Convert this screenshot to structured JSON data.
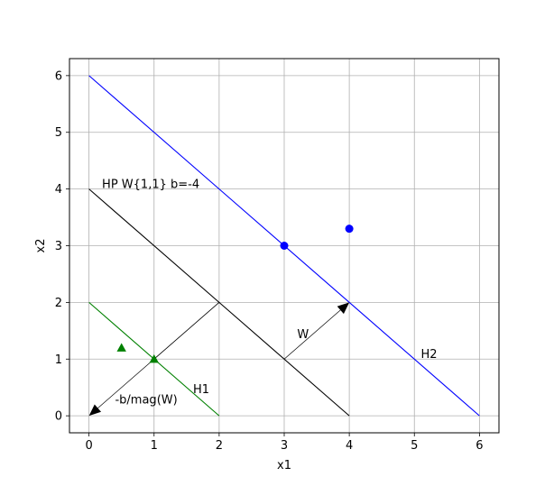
{
  "chart_data": {
    "type": "line",
    "title": "",
    "xlabel": "x1",
    "ylabel": "x2",
    "xlim": [
      -0.3,
      6.3
    ],
    "ylim": [
      -0.3,
      6.3
    ],
    "xticks": [
      0,
      1,
      2,
      3,
      4,
      5,
      6
    ],
    "yticks": [
      0,
      1,
      2,
      3,
      4,
      5,
      6
    ],
    "grid": true,
    "lines": [
      {
        "id": "hp",
        "color": "#000000",
        "x": [
          0,
          4
        ],
        "y": [
          4,
          0
        ]
      },
      {
        "id": "h2",
        "color": "#0000ff",
        "x": [
          0,
          6
        ],
        "y": [
          6,
          0
        ]
      },
      {
        "id": "h1",
        "color": "#008000",
        "x": [
          0,
          2
        ],
        "y": [
          2,
          0
        ]
      },
      {
        "id": "thin-diagonal",
        "color": "#000000",
        "x": [
          1,
          2
        ],
        "y": [
          1,
          2
        ]
      }
    ],
    "arrows": [
      {
        "id": "w",
        "x": [
          3,
          4
        ],
        "y": [
          1,
          2
        ]
      },
      {
        "id": "neg-b-mag-w",
        "x": [
          2,
          0
        ],
        "y": [
          2,
          0
        ]
      }
    ],
    "points": [
      {
        "series": "blue",
        "marker": "circle",
        "color": "#0000ff",
        "x": 3,
        "y": 3
      },
      {
        "series": "blue",
        "marker": "circle",
        "color": "#0000ff",
        "x": 4,
        "y": 3.3
      },
      {
        "series": "green",
        "marker": "triangle",
        "color": "#008000",
        "x": 0.5,
        "y": 1.2
      },
      {
        "series": "green",
        "marker": "triangle",
        "color": "#008000",
        "x": 1,
        "y": 1
      }
    ],
    "annotations": [
      {
        "text": "HP W{1,1} b=-4",
        "x": 0.2,
        "y": 4.02
      },
      {
        "text": "H2",
        "x": 5.1,
        "y": 1.02
      },
      {
        "text": "H1",
        "x": 1.6,
        "y": 0.4
      },
      {
        "text": "W",
        "x": 3.2,
        "y": 1.37
      },
      {
        "text": "-b/mag(W)",
        "x": 0.4,
        "y": 0.22
      }
    ]
  }
}
